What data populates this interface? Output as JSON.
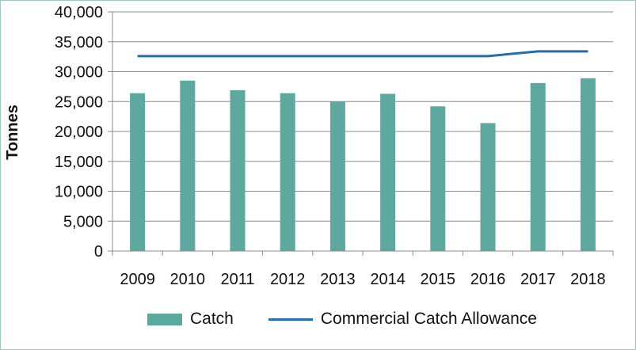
{
  "chart_data": {
    "type": "bar",
    "title": "",
    "xlabel": "",
    "ylabel": "Tonnes",
    "ylim": [
      0,
      40000
    ],
    "yticks": [
      "0",
      "5,000",
      "10,000",
      "15,000",
      "20,000",
      "25,000",
      "30,000",
      "35,000",
      "40,000"
    ],
    "ytick_values": [
      0,
      5000,
      10000,
      15000,
      20000,
      25000,
      30000,
      35000,
      40000
    ],
    "categories": [
      "2009",
      "2010",
      "2011",
      "2012",
      "2013",
      "2014",
      "2015",
      "2016",
      "2017",
      "2018"
    ],
    "series": [
      {
        "name": "Catch",
        "type": "bar",
        "color": "#5ea99f",
        "values": [
          26400,
          28500,
          26900,
          26400,
          25000,
          26300,
          24200,
          21400,
          28100,
          28900
        ]
      },
      {
        "name": "Commercial Catch Allowance",
        "type": "line",
        "color": "#1f6fb2",
        "values": [
          32600,
          32600,
          32600,
          32600,
          32600,
          32600,
          32600,
          32600,
          33400,
          33400
        ]
      }
    ],
    "grid": true,
    "legend_position": "bottom"
  },
  "colors": {
    "background": "#ffffff",
    "gridline": "#8c8c8c",
    "border": "#9fc9c3"
  }
}
